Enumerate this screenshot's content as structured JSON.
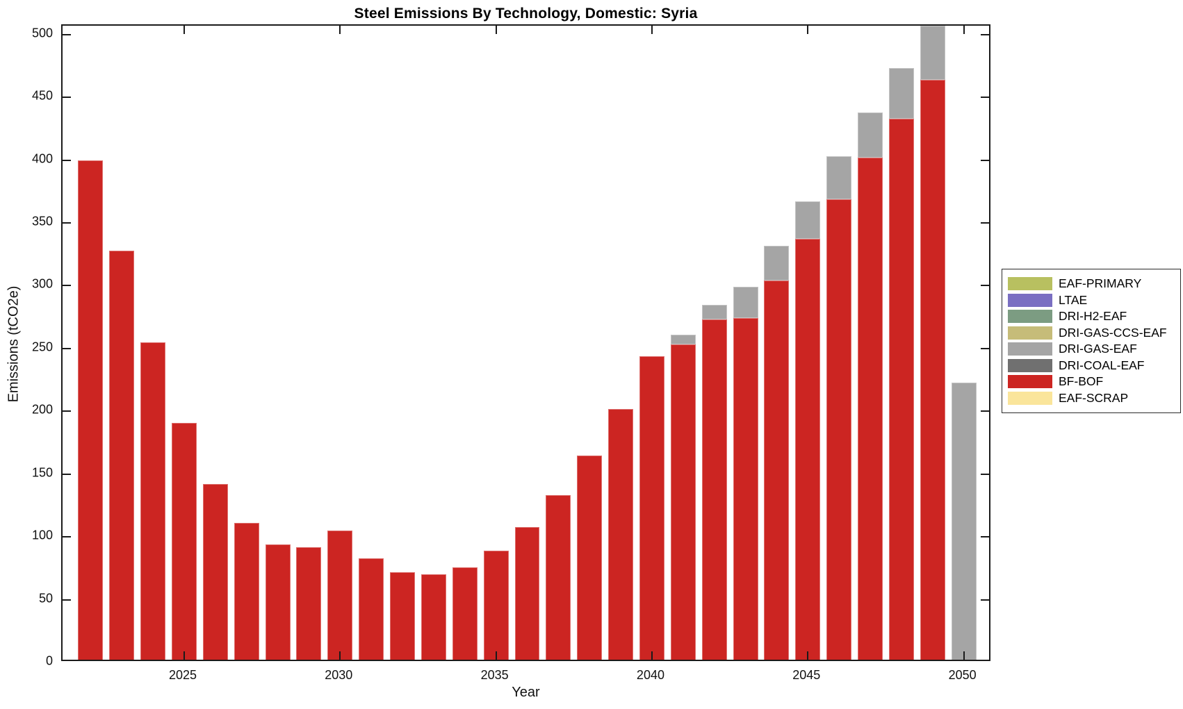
{
  "title": "Steel Emissions By Technology, Domestic: Syria",
  "chart_data": {
    "type": "bar",
    "stacked": true,
    "title": "Steel Emissions By Technology, Domestic: Syria",
    "xlabel": "Year",
    "ylabel": "Emissions (tCO2e)",
    "xlim": [
      2021.1,
      2050.9
    ],
    "ylim": [
      0,
      507
    ],
    "yticks": [
      0,
      50,
      100,
      150,
      200,
      250,
      300,
      350,
      400,
      450,
      500
    ],
    "xticks": [
      2025,
      2030,
      2035,
      2040,
      2045,
      2050
    ],
    "grid": false,
    "bar_width_fraction": 0.8,
    "categories": [
      2022,
      2023,
      2024,
      2025,
      2026,
      2027,
      2028,
      2029,
      2030,
      2031,
      2032,
      2033,
      2034,
      2035,
      2036,
      2037,
      2038,
      2039,
      2040,
      2041,
      2042,
      2043,
      2044,
      2045,
      2046,
      2047,
      2048,
      2049,
      2050
    ],
    "series": [
      {
        "name": "BF-BOF",
        "color": "#cc2522",
        "values": [
          400,
          328,
          255,
          191,
          142,
          111,
          94,
          92,
          105,
          83,
          72,
          70,
          76,
          89,
          108,
          133,
          165,
          202,
          244,
          253,
          273,
          274,
          304,
          337,
          369,
          402,
          433,
          464,
          0
        ]
      },
      {
        "name": "DRI-GAS-EAF",
        "color": "#a5a5a5",
        "values": [
          0,
          0,
          0,
          0,
          0,
          0,
          0,
          0,
          0,
          0,
          0,
          0,
          0,
          0,
          0,
          0,
          0,
          0,
          0,
          8,
          12,
          25,
          28,
          30,
          34,
          36,
          40,
          43,
          223
        ]
      }
    ],
    "legend": {
      "position": "right",
      "entries": [
        {
          "label": "EAF-PRIMARY",
          "color": "#b8c060"
        },
        {
          "label": "LTAE",
          "color": "#7a6fc2"
        },
        {
          "label": "DRI-H2-EAF",
          "color": "#7c9c82"
        },
        {
          "label": "DRI-GAS-CCS-EAF",
          "color": "#c6bc79"
        },
        {
          "label": "DRI-GAS-EAF",
          "color": "#a5a5a5"
        },
        {
          "label": "DRI-COAL-EAF",
          "color": "#707070"
        },
        {
          "label": "BF-BOF",
          "color": "#cc2522"
        },
        {
          "label": "EAF-SCRAP",
          "color": "#fae59b"
        }
      ]
    },
    "axis_color": "#1a1a1a"
  }
}
